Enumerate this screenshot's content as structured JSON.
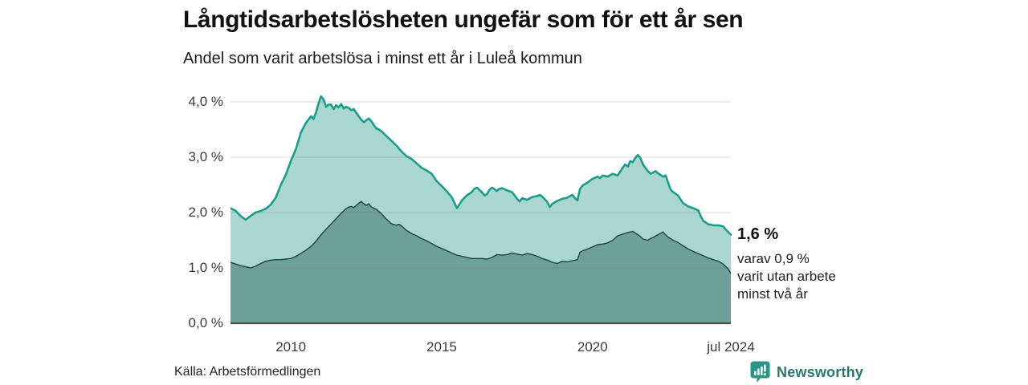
{
  "header": {
    "title": "Långtidsarbetslösheten ungefär som för ett år sen",
    "subtitle": "Andel som varit arbetslösa i minst ett år i Luleå kommun"
  },
  "annotation": {
    "value": "1,6 %",
    "lines": [
      "varav 0,9 %",
      "varit utan arbete",
      "minst två år"
    ]
  },
  "footer": {
    "source": "Källa: Arbetsförmedlingen",
    "logo_text": "Newsworthy"
  },
  "colors": {
    "accent_line": "#1d9c8c",
    "light_fill": "#a9d6cf",
    "dark_fill": "#6da098",
    "dark_line": "#24423e",
    "grid": "rgba(110,110,110,0.28)",
    "axis": "#4d4d4d",
    "logo": "#2d9384",
    "logo_text_color": "#2a786d"
  },
  "chart_data": {
    "type": "area",
    "title": "Långtidsarbetslösheten ungefär som för ett år sen",
    "subtitle": "Andel som varit arbetslösa i minst ett år i Luleå kommun",
    "xlabel": "",
    "ylabel": "",
    "xlim": [
      2008.0,
      2024.583
    ],
    "ylim": [
      0,
      4.0
    ],
    "grid": true,
    "legend": "none",
    "y_ticks": [
      {
        "v": 0,
        "label": "0,0 %"
      },
      {
        "v": 1,
        "label": "1,0 %"
      },
      {
        "v": 2,
        "label": "2,0 %"
      },
      {
        "v": 3,
        "label": "3,0 %"
      },
      {
        "v": 4,
        "label": "4,0 %"
      }
    ],
    "x_ticks": [
      {
        "v": 2010,
        "label": "2010"
      },
      {
        "v": 2015,
        "label": "2015"
      },
      {
        "v": 2020,
        "label": "2020"
      },
      {
        "v": 2024.583,
        "label": "jul 2024"
      }
    ],
    "series": [
      {
        "name": "Arbetslösa minst ett år",
        "role": "total",
        "end_value_label": "1,6 %",
        "x": [
          2008.0,
          2008.17,
          2008.33,
          2008.5,
          2008.67,
          2008.83,
          2009.0,
          2009.17,
          2009.33,
          2009.5,
          2009.67,
          2009.83,
          2010.0,
          2010.17,
          2010.33,
          2010.5,
          2010.67,
          2010.75,
          2010.83,
          2010.92,
          2011.0,
          2011.08,
          2011.17,
          2011.25,
          2011.33,
          2011.42,
          2011.5,
          2011.58,
          2011.67,
          2011.75,
          2011.83,
          2011.92,
          2012.0,
          2012.08,
          2012.17,
          2012.25,
          2012.33,
          2012.42,
          2012.5,
          2012.58,
          2012.67,
          2012.75,
          2012.83,
          2012.92,
          2013.0,
          2013.17,
          2013.33,
          2013.5,
          2013.67,
          2013.83,
          2014.0,
          2014.17,
          2014.33,
          2014.5,
          2014.67,
          2014.83,
          2015.0,
          2015.17,
          2015.33,
          2015.42,
          2015.5,
          2015.58,
          2015.67,
          2015.83,
          2016.0,
          2016.08,
          2016.17,
          2016.33,
          2016.42,
          2016.5,
          2016.58,
          2016.67,
          2016.83,
          2016.92,
          2017.0,
          2017.17,
          2017.33,
          2017.5,
          2017.58,
          2017.67,
          2017.83,
          2018.0,
          2018.17,
          2018.25,
          2018.33,
          2018.5,
          2018.58,
          2018.67,
          2018.83,
          2019.0,
          2019.17,
          2019.33,
          2019.42,
          2019.5,
          2019.58,
          2019.67,
          2019.83,
          2020.0,
          2020.17,
          2020.25,
          2020.33,
          2020.5,
          2020.67,
          2020.83,
          2021.0,
          2021.08,
          2021.17,
          2021.25,
          2021.33,
          2021.42,
          2021.5,
          2021.58,
          2021.67,
          2021.83,
          2021.92,
          2022.0,
          2022.08,
          2022.17,
          2022.33,
          2022.42,
          2022.5,
          2022.58,
          2022.67,
          2022.83,
          2023.0,
          2023.17,
          2023.33,
          2023.5,
          2023.58,
          2023.67,
          2023.83,
          2024.0,
          2024.17,
          2024.33,
          2024.42,
          2024.583
        ],
        "y": [
          2.08,
          2.03,
          1.94,
          1.87,
          1.94,
          2.0,
          2.03,
          2.07,
          2.14,
          2.27,
          2.5,
          2.68,
          2.93,
          3.15,
          3.44,
          3.62,
          3.74,
          3.69,
          3.8,
          3.98,
          4.1,
          4.05,
          3.91,
          3.95,
          3.95,
          3.87,
          3.94,
          3.9,
          3.96,
          3.88,
          3.91,
          3.89,
          3.85,
          3.87,
          3.8,
          3.74,
          3.68,
          3.63,
          3.67,
          3.7,
          3.65,
          3.58,
          3.52,
          3.5,
          3.47,
          3.38,
          3.3,
          3.21,
          3.1,
          3.02,
          2.97,
          2.89,
          2.81,
          2.76,
          2.7,
          2.57,
          2.48,
          2.38,
          2.28,
          2.18,
          2.08,
          2.14,
          2.22,
          2.31,
          2.37,
          2.43,
          2.45,
          2.37,
          2.31,
          2.33,
          2.41,
          2.45,
          2.39,
          2.43,
          2.44,
          2.4,
          2.37,
          2.25,
          2.2,
          2.26,
          2.23,
          2.28,
          2.3,
          2.32,
          2.29,
          2.19,
          2.1,
          2.16,
          2.21,
          2.25,
          2.27,
          2.32,
          2.26,
          2.22,
          2.42,
          2.49,
          2.54,
          2.61,
          2.65,
          2.62,
          2.67,
          2.65,
          2.7,
          2.67,
          2.81,
          2.87,
          2.83,
          2.93,
          2.91,
          2.99,
          3.04,
          2.99,
          2.87,
          2.75,
          2.7,
          2.72,
          2.75,
          2.71,
          2.65,
          2.67,
          2.55,
          2.42,
          2.37,
          2.31,
          2.17,
          2.11,
          2.08,
          2.04,
          1.94,
          1.85,
          1.79,
          1.77,
          1.77,
          1.75,
          1.69,
          1.6
        ]
      },
      {
        "name": "Utan arbete minst två år",
        "role": "two_years",
        "end_value_label": "0,9 %",
        "x": [
          2008.0,
          2008.17,
          2008.33,
          2008.5,
          2008.67,
          2008.83,
          2009.0,
          2009.17,
          2009.33,
          2009.5,
          2009.67,
          2009.83,
          2010.0,
          2010.17,
          2010.33,
          2010.5,
          2010.67,
          2010.83,
          2011.0,
          2011.17,
          2011.33,
          2011.5,
          2011.67,
          2011.83,
          2011.92,
          2012.0,
          2012.08,
          2012.17,
          2012.25,
          2012.33,
          2012.42,
          2012.5,
          2012.58,
          2012.67,
          2012.83,
          2013.0,
          2013.17,
          2013.33,
          2013.5,
          2013.58,
          2013.67,
          2013.83,
          2014.0,
          2014.17,
          2014.33,
          2014.5,
          2014.67,
          2014.83,
          2015.0,
          2015.17,
          2015.33,
          2015.5,
          2015.67,
          2015.83,
          2016.0,
          2016.17,
          2016.33,
          2016.5,
          2016.67,
          2016.83,
          2017.0,
          2017.17,
          2017.33,
          2017.5,
          2017.67,
          2017.83,
          2018.0,
          2018.17,
          2018.33,
          2018.5,
          2018.67,
          2018.83,
          2019.0,
          2019.17,
          2019.33,
          2019.5,
          2019.58,
          2019.67,
          2019.83,
          2020.0,
          2020.17,
          2020.33,
          2020.5,
          2020.67,
          2020.83,
          2021.0,
          2021.17,
          2021.33,
          2021.42,
          2021.5,
          2021.58,
          2021.67,
          2021.83,
          2021.92,
          2022.0,
          2022.17,
          2022.33,
          2022.42,
          2022.5,
          2022.67,
          2022.83,
          2023.0,
          2023.17,
          2023.33,
          2023.5,
          2023.67,
          2023.83,
          2024.0,
          2024.17,
          2024.33,
          2024.5,
          2024.583
        ],
        "y": [
          1.1,
          1.07,
          1.04,
          1.02,
          1.0,
          1.03,
          1.08,
          1.12,
          1.14,
          1.15,
          1.15,
          1.16,
          1.17,
          1.21,
          1.26,
          1.32,
          1.39,
          1.48,
          1.6,
          1.7,
          1.79,
          1.89,
          1.99,
          2.07,
          2.1,
          2.11,
          2.09,
          2.13,
          2.17,
          2.2,
          2.16,
          2.13,
          2.16,
          2.1,
          2.06,
          1.98,
          1.88,
          1.8,
          1.77,
          1.79,
          1.76,
          1.68,
          1.62,
          1.58,
          1.53,
          1.49,
          1.44,
          1.39,
          1.35,
          1.31,
          1.27,
          1.23,
          1.21,
          1.19,
          1.17,
          1.17,
          1.17,
          1.16,
          1.19,
          1.24,
          1.23,
          1.24,
          1.27,
          1.25,
          1.23,
          1.26,
          1.24,
          1.21,
          1.17,
          1.14,
          1.1,
          1.08,
          1.12,
          1.11,
          1.13,
          1.15,
          1.28,
          1.31,
          1.34,
          1.38,
          1.42,
          1.43,
          1.45,
          1.5,
          1.58,
          1.61,
          1.64,
          1.66,
          1.63,
          1.6,
          1.57,
          1.52,
          1.5,
          1.53,
          1.55,
          1.6,
          1.65,
          1.6,
          1.56,
          1.5,
          1.46,
          1.4,
          1.34,
          1.3,
          1.26,
          1.22,
          1.18,
          1.15,
          1.12,
          1.07,
          0.98,
          0.9
        ]
      }
    ]
  }
}
